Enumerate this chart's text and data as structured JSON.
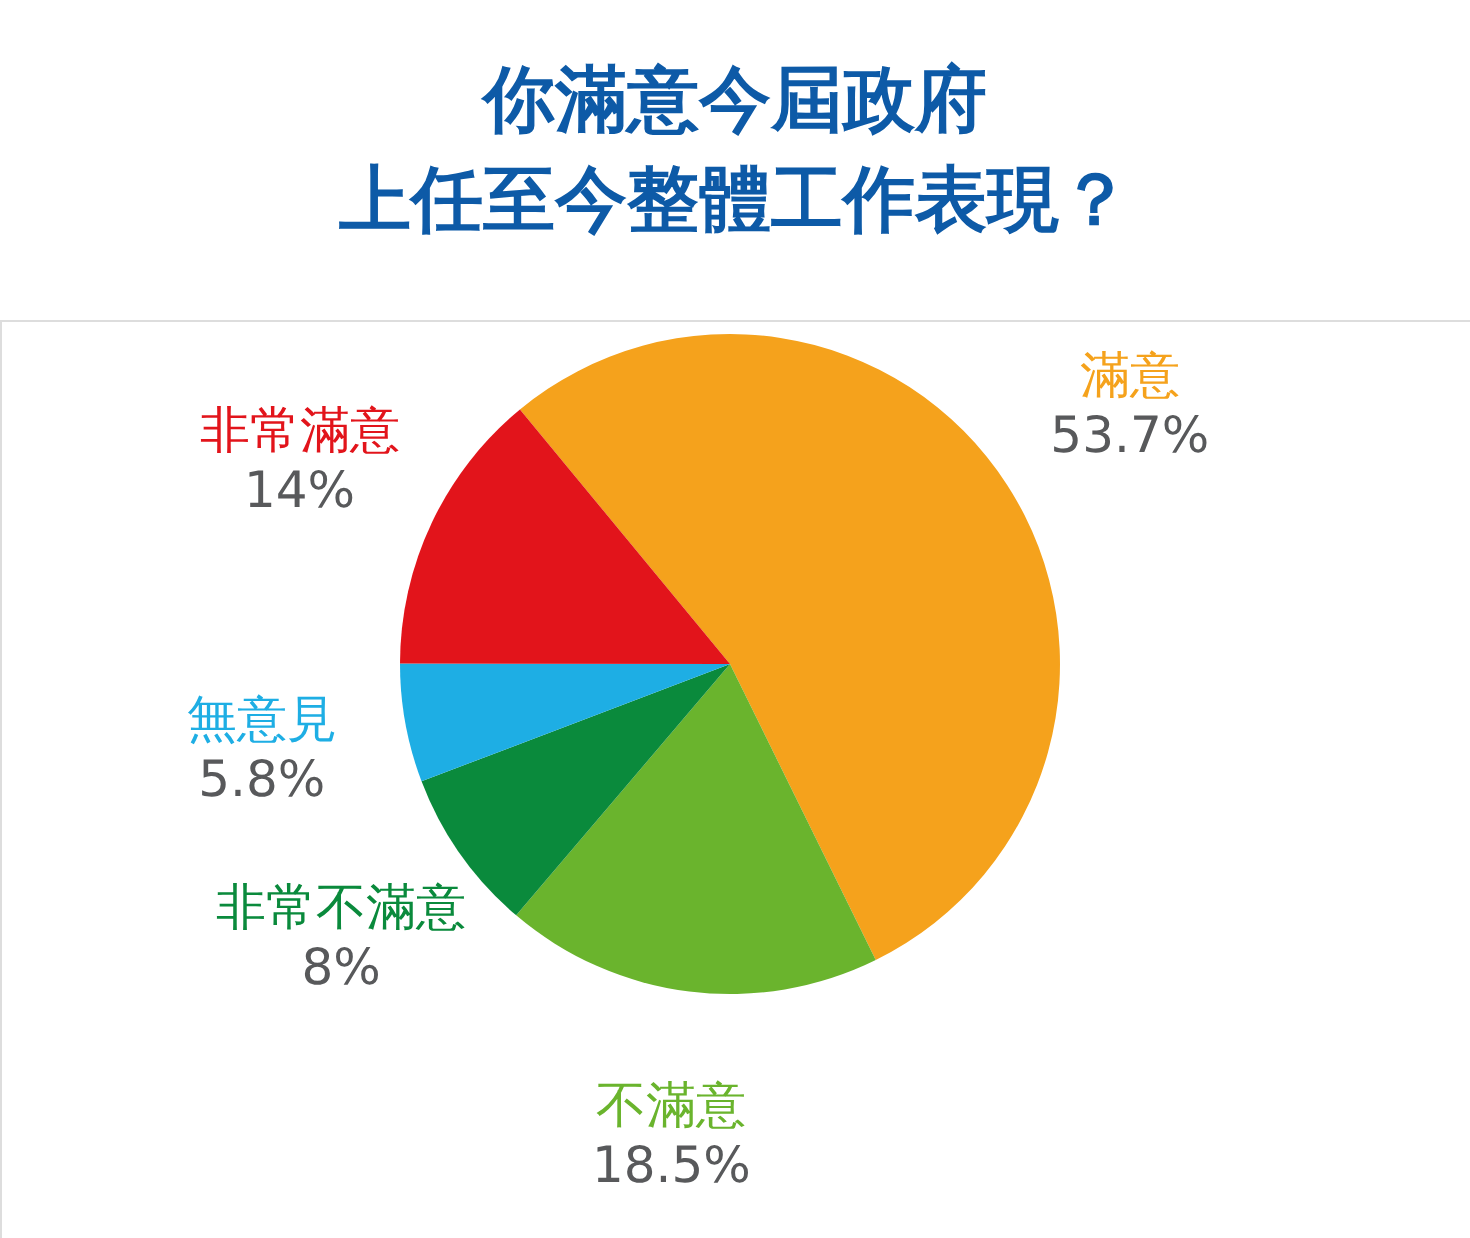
{
  "chart_data": {
    "type": "pie",
    "title": "你滿意今屆政府上任至今整體工作表現？",
    "categories": [
      "滿意",
      "不滿意",
      "非常不滿意",
      "無意見",
      "非常滿意"
    ],
    "values": [
      53.7,
      18.5,
      8,
      5.8,
      14
    ],
    "colors": [
      "#f5a21c",
      "#6ab42d",
      "#0a8a3c",
      "#1eaee4",
      "#e2141b"
    ],
    "value_labels": [
      "53.7%",
      "18.5%",
      "8%",
      "5.8%",
      "14%"
    ]
  }
}
